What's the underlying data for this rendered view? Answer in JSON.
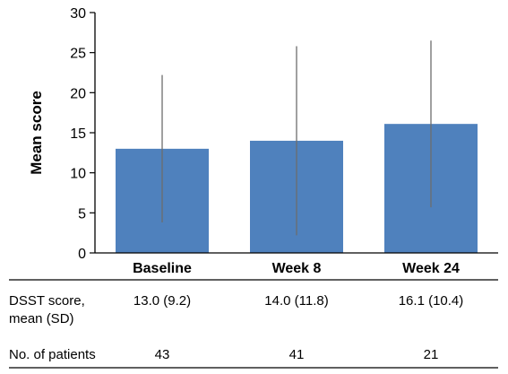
{
  "chart_data": {
    "type": "bar",
    "ylabel": "Mean score",
    "ylim": [
      0,
      30
    ],
    "yticks": [
      0,
      5,
      10,
      15,
      20,
      25,
      30
    ],
    "categories": [
      "Baseline",
      "Week 8",
      "Week 24"
    ],
    "values": [
      13.0,
      14.0,
      16.1
    ],
    "error_sd": [
      9.2,
      11.8,
      10.4
    ],
    "bar_color": "#4f81bd",
    "errorbar_color": "#6d6d6d",
    "grid": false
  },
  "table": {
    "rows": [
      {
        "label_lines": [
          "DSST score,",
          "mean (SD)"
        ],
        "values": [
          "13.0 (9.2)",
          "14.0 (11.8)",
          "16.1 (10.4)"
        ]
      },
      {
        "label_lines": [
          "No. of patients"
        ],
        "values": [
          "43",
          "41",
          "21"
        ]
      }
    ]
  }
}
